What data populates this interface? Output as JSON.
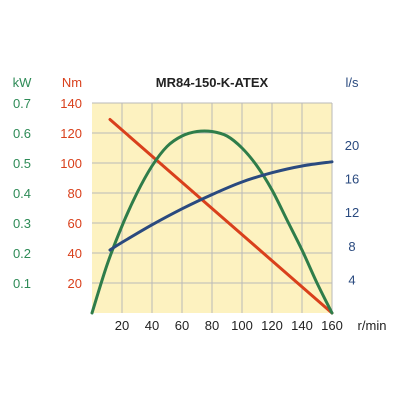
{
  "chart_data": {
    "type": "line",
    "title": "MR84-150-K-ATEX",
    "x_unit": "r/min",
    "xlim": [
      0,
      160
    ],
    "x_ticks": [
      20,
      40,
      60,
      80,
      100,
      120,
      140,
      160
    ],
    "axes": {
      "kW": {
        "label": "kW",
        "lim": [
          0,
          0.7
        ],
        "ticks": [
          "0.1",
          "0.2",
          "0.3",
          "0.4",
          "0.5",
          "0.6",
          "0.7"
        ],
        "color": "#2e8b57"
      },
      "Nm": {
        "label": "Nm",
        "lim": [
          0,
          140
        ],
        "ticks": [
          "20",
          "40",
          "60",
          "80",
          "100",
          "120",
          "140"
        ],
        "color": "#d9401c"
      },
      "ls": {
        "label": "l/s",
        "lim": [
          0,
          25
        ],
        "ticks": [
          "4",
          "8",
          "12",
          "16",
          "20"
        ],
        "color": "#2a4a7f"
      }
    },
    "grid": true,
    "series": [
      {
        "axis": "Nm",
        "color": "#d9401c",
        "x": [
          12,
          160
        ],
        "y": [
          129,
          0
        ]
      },
      {
        "axis": "kW",
        "color": "#2f7d4a",
        "x": [
          0,
          10,
          20,
          30,
          40,
          50,
          60,
          70,
          80,
          90,
          100,
          110,
          120,
          130,
          140,
          150,
          160
        ],
        "y": [
          0,
          0.16,
          0.29,
          0.4,
          0.49,
          0.555,
          0.59,
          0.605,
          0.605,
          0.59,
          0.55,
          0.49,
          0.41,
          0.31,
          0.21,
          0.1,
          0
        ]
      },
      {
        "axis": "ls",
        "color": "#2a4a7f",
        "x": [
          12,
          20,
          40,
          60,
          80,
          100,
          120,
          140,
          160
        ],
        "y": [
          7.5,
          8.4,
          10.5,
          12.4,
          14.1,
          15.6,
          16.7,
          17.5,
          18.0
        ]
      }
    ]
  }
}
